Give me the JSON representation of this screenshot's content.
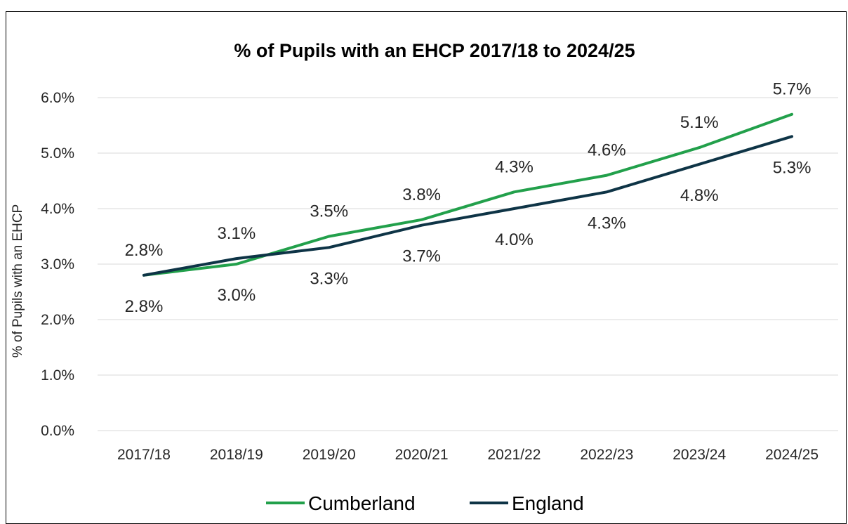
{
  "chart_data": {
    "type": "line",
    "title": "% of Pupils with an EHCP 2017/18 to 2024/25",
    "xlabel": "",
    "ylabel": "% of Pupils with an EHCP",
    "categories": [
      "2017/18",
      "2018/19",
      "2019/20",
      "2020/21",
      "2021/22",
      "2022/23",
      "2023/24",
      "2024/25"
    ],
    "ylim": [
      0,
      6
    ],
    "yticks": [
      "0.0%",
      "1.0%",
      "2.0%",
      "3.0%",
      "4.0%",
      "5.0%",
      "6.0%"
    ],
    "grid": true,
    "legend_position": "bottom",
    "series": [
      {
        "name": "Cumberland",
        "color": "#22a04b",
        "values": [
          2.8,
          3.0,
          3.5,
          3.8,
          4.3,
          4.6,
          5.1,
          5.7
        ],
        "labels": [
          "2.8%",
          "3.0%",
          "3.5%",
          "3.8%",
          "4.3%",
          "4.6%",
          "5.1%",
          "5.7%"
        ]
      },
      {
        "name": "England",
        "color": "#0e3446",
        "values": [
          2.8,
          3.1,
          3.3,
          3.7,
          4.0,
          4.3,
          4.8,
          5.3
        ],
        "labels": [
          "2.8%",
          "3.1%",
          "3.3%",
          "3.7%",
          "4.0%",
          "4.3%",
          "4.8%",
          "5.3%"
        ]
      }
    ]
  }
}
